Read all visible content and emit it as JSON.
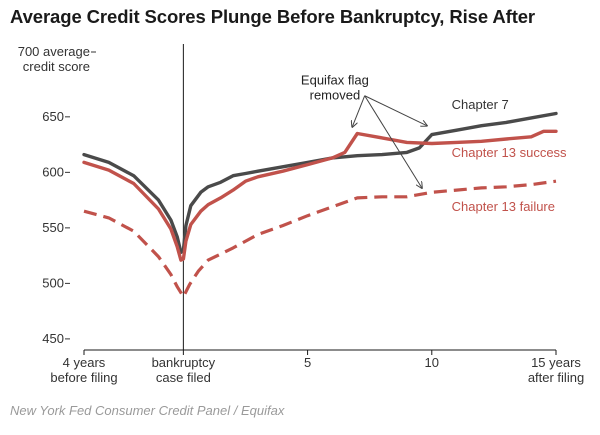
{
  "title": "Average Credit Scores Plunge Before Bankruptcy, Rise After",
  "source": "New York Fed Consumer Credit Panel / Equifax",
  "colors": {
    "chapter7": "#4a4a4a",
    "chapter13": "#c1524b",
    "axis": "#1a1a1a",
    "text": "#333333",
    "annotation": "#444444"
  },
  "chart_data": {
    "type": "line",
    "title": "Average Credit Scores Plunge Before Bankruptcy, Rise After",
    "ylabel_lines": [
      "700 average",
      "credit score"
    ],
    "ylim": [
      440,
      712
    ],
    "xlim": [
      -4,
      15
    ],
    "grid": false,
    "y_ticks": [
      {
        "value": 450,
        "label": "450"
      },
      {
        "value": 500,
        "label": "500"
      },
      {
        "value": 550,
        "label": "550"
      },
      {
        "value": 600,
        "label": "600"
      },
      {
        "value": 650,
        "label": "650"
      }
    ],
    "x_ticks": [
      {
        "value": -4,
        "lines": [
          "4 years",
          "before filing"
        ]
      },
      {
        "value": 0,
        "lines": [
          "bankruptcy",
          "case filed"
        ]
      },
      {
        "value": 5,
        "lines": [
          "5"
        ]
      },
      {
        "value": 10,
        "lines": [
          "10"
        ]
      },
      {
        "value": 15,
        "lines": [
          "15 years",
          "after filing"
        ]
      }
    ],
    "filing_line_x": 0,
    "series": [
      {
        "name": "Chapter 7",
        "style": "solid",
        "color_key": "chapter7",
        "x": [
          -4,
          -3,
          -2,
          -1,
          -0.5,
          -0.25,
          -0.1,
          0,
          0.1,
          0.3,
          0.7,
          1,
          1.5,
          2,
          2.5,
          3,
          4,
          5,
          6,
          7,
          8,
          9,
          9.5,
          10,
          11,
          12,
          13,
          14,
          15
        ],
        "y": [
          616,
          609,
          597,
          575,
          557,
          542,
          528,
          530,
          552,
          570,
          582,
          587,
          591,
          597,
          599,
          601,
          605,
          609,
          613,
          615,
          616,
          618,
          622,
          634,
          638,
          642,
          645,
          649,
          653
        ]
      },
      {
        "name": "Chapter 13 success",
        "style": "solid",
        "color_key": "chapter13",
        "x": [
          -4,
          -3,
          -2,
          -1,
          -0.5,
          -0.25,
          -0.1,
          0,
          0.1,
          0.3,
          0.7,
          1,
          1.5,
          2,
          2.5,
          3,
          4,
          5,
          6,
          6.5,
          7,
          8,
          9,
          10,
          11,
          12,
          13,
          14,
          14.5,
          15
        ],
        "y": [
          609,
          602,
          590,
          567,
          549,
          533,
          521,
          522,
          538,
          553,
          565,
          571,
          577,
          584,
          592,
          596,
          601,
          607,
          613,
          618,
          635,
          631,
          627,
          626,
          627,
          628,
          630,
          632,
          637,
          637
        ]
      },
      {
        "name": "Chapter 13 failure",
        "style": "dashed",
        "color_key": "chapter13",
        "x": [
          -4,
          -3,
          -2,
          -1,
          -0.5,
          -0.25,
          0,
          0.25,
          0.6,
          1,
          2,
          3,
          4,
          5,
          6,
          7,
          8,
          9,
          10,
          11,
          12,
          13,
          14,
          15
        ],
        "y": [
          565,
          559,
          547,
          524,
          508,
          497,
          488,
          499,
          511,
          521,
          532,
          544,
          552,
          561,
          569,
          577,
          578,
          578,
          582,
          584,
          586,
          587,
          589,
          592
        ]
      }
    ],
    "series_labels": [
      {
        "series": 0,
        "text": "Chapter 7",
        "at": [
          10.8,
          657
        ]
      },
      {
        "series": 1,
        "text": "Chapter 13 success",
        "at": [
          10.8,
          614
        ]
      },
      {
        "series": 2,
        "text": "Chapter 13 failure",
        "at": [
          10.8,
          565
        ]
      }
    ],
    "annotation": {
      "lines": [
        "Equifax flag",
        "removed"
      ],
      "text_at": [
        6.1,
        679
      ],
      "origin": [
        7.3,
        669
      ],
      "targets": [
        [
          6.8,
          641
        ],
        [
          9.8,
          642
        ],
        [
          9.6,
          586
        ]
      ]
    }
  }
}
